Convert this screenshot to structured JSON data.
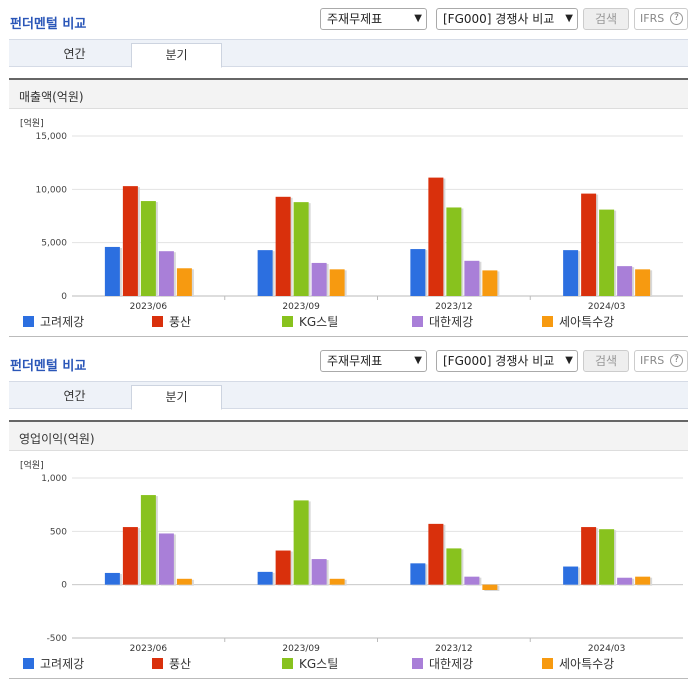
{
  "panels": [
    {
      "title": "펀더멘털 비교",
      "statement_select": "주재무제표",
      "compare_select": "[FG000] 경쟁사 비교",
      "search_button": "검색",
      "ifrs_label": "IFRS",
      "tabs": [
        {
          "label": "연간",
          "active": false
        },
        {
          "label": "분기",
          "active": true
        }
      ],
      "chart_header": "매출액(억원)"
    },
    {
      "title": "펀더멘털 비교",
      "statement_select": "주재무제표",
      "compare_select": "[FG000] 경쟁사 비교",
      "search_button": "검색",
      "ifrs_label": "IFRS",
      "tabs": [
        {
          "label": "연간",
          "active": false
        },
        {
          "label": "분기",
          "active": true
        }
      ],
      "chart_header": "영업이익(억원)"
    }
  ],
  "colors": {
    "고려제강": "#2c6fe0",
    "풍산": "#d9300c",
    "KG스틸": "#88c21e",
    "대한제강": "#a97fd8",
    "세아특수강": "#f79a10"
  },
  "chart_data": [
    {
      "type": "bar",
      "title": "매출액(억원)",
      "unit_label": "[억원]",
      "categories": [
        "2023/06",
        "2023/09",
        "2023/12",
        "2024/03"
      ],
      "ylim": [
        0,
        15000
      ],
      "yticks": [
        0,
        5000,
        10000,
        15000
      ],
      "ytick_labels": [
        "0",
        "5,000",
        "10,000",
        "15,000"
      ],
      "grid": true,
      "legend_position": "bottom",
      "series": [
        {
          "name": "고려제강",
          "values": [
            4600,
            4300,
            4400,
            4300
          ]
        },
        {
          "name": "풍산",
          "values": [
            10300,
            9300,
            11100,
            9600
          ]
        },
        {
          "name": "KG스틸",
          "values": [
            8900,
            8800,
            8300,
            8100
          ]
        },
        {
          "name": "대한제강",
          "values": [
            4200,
            3100,
            3300,
            2800
          ]
        },
        {
          "name": "세아특수강",
          "values": [
            2600,
            2500,
            2400,
            2500
          ]
        }
      ]
    },
    {
      "type": "bar",
      "title": "영업이익(억원)",
      "unit_label": "[억원]",
      "categories": [
        "2023/06",
        "2023/09",
        "2023/12",
        "2024/03"
      ],
      "ylim": [
        -500,
        1000
      ],
      "yticks": [
        -500,
        0,
        500,
        1000
      ],
      "ytick_labels": [
        "-500",
        "0",
        "500",
        "1,000"
      ],
      "grid": true,
      "legend_position": "bottom",
      "series": [
        {
          "name": "고려제강",
          "values": [
            110,
            120,
            200,
            170
          ]
        },
        {
          "name": "풍산",
          "values": [
            540,
            320,
            570,
            540
          ]
        },
        {
          "name": "KG스틸",
          "values": [
            840,
            790,
            340,
            520
          ]
        },
        {
          "name": "대한제강",
          "values": [
            480,
            240,
            75,
            65
          ]
        },
        {
          "name": "세아특수강",
          "values": [
            55,
            55,
            -50,
            75
          ]
        }
      ]
    }
  ]
}
